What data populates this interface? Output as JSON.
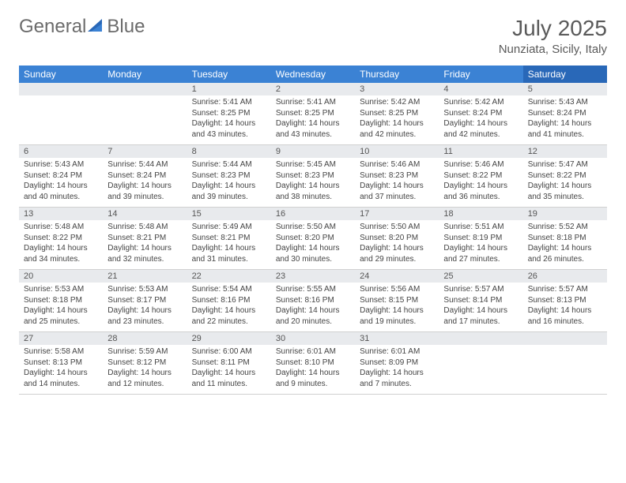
{
  "logo": {
    "text1": "General",
    "text2": "Blue"
  },
  "title": "July 2025",
  "location": "Nunziata, Sicily, Italy",
  "colors": {
    "header_bg": "#3b82d4",
    "header_sat_bg": "#2968b8",
    "header_text": "#ffffff",
    "daynum_bg": "#e8eaed",
    "text": "#444444",
    "title_color": "#5a5a5a"
  },
  "dayNames": [
    "Sunday",
    "Monday",
    "Tuesday",
    "Wednesday",
    "Thursday",
    "Friday",
    "Saturday"
  ],
  "weeks": [
    [
      {
        "n": "",
        "sr": "",
        "ss": "",
        "dl": ""
      },
      {
        "n": "",
        "sr": "",
        "ss": "",
        "dl": ""
      },
      {
        "n": "1",
        "sr": "Sunrise: 5:41 AM",
        "ss": "Sunset: 8:25 PM",
        "dl": "Daylight: 14 hours and 43 minutes."
      },
      {
        "n": "2",
        "sr": "Sunrise: 5:41 AM",
        "ss": "Sunset: 8:25 PM",
        "dl": "Daylight: 14 hours and 43 minutes."
      },
      {
        "n": "3",
        "sr": "Sunrise: 5:42 AM",
        "ss": "Sunset: 8:25 PM",
        "dl": "Daylight: 14 hours and 42 minutes."
      },
      {
        "n": "4",
        "sr": "Sunrise: 5:42 AM",
        "ss": "Sunset: 8:24 PM",
        "dl": "Daylight: 14 hours and 42 minutes."
      },
      {
        "n": "5",
        "sr": "Sunrise: 5:43 AM",
        "ss": "Sunset: 8:24 PM",
        "dl": "Daylight: 14 hours and 41 minutes."
      }
    ],
    [
      {
        "n": "6",
        "sr": "Sunrise: 5:43 AM",
        "ss": "Sunset: 8:24 PM",
        "dl": "Daylight: 14 hours and 40 minutes."
      },
      {
        "n": "7",
        "sr": "Sunrise: 5:44 AM",
        "ss": "Sunset: 8:24 PM",
        "dl": "Daylight: 14 hours and 39 minutes."
      },
      {
        "n": "8",
        "sr": "Sunrise: 5:44 AM",
        "ss": "Sunset: 8:23 PM",
        "dl": "Daylight: 14 hours and 39 minutes."
      },
      {
        "n": "9",
        "sr": "Sunrise: 5:45 AM",
        "ss": "Sunset: 8:23 PM",
        "dl": "Daylight: 14 hours and 38 minutes."
      },
      {
        "n": "10",
        "sr": "Sunrise: 5:46 AM",
        "ss": "Sunset: 8:23 PM",
        "dl": "Daylight: 14 hours and 37 minutes."
      },
      {
        "n": "11",
        "sr": "Sunrise: 5:46 AM",
        "ss": "Sunset: 8:22 PM",
        "dl": "Daylight: 14 hours and 36 minutes."
      },
      {
        "n": "12",
        "sr": "Sunrise: 5:47 AM",
        "ss": "Sunset: 8:22 PM",
        "dl": "Daylight: 14 hours and 35 minutes."
      }
    ],
    [
      {
        "n": "13",
        "sr": "Sunrise: 5:48 AM",
        "ss": "Sunset: 8:22 PM",
        "dl": "Daylight: 14 hours and 34 minutes."
      },
      {
        "n": "14",
        "sr": "Sunrise: 5:48 AM",
        "ss": "Sunset: 8:21 PM",
        "dl": "Daylight: 14 hours and 32 minutes."
      },
      {
        "n": "15",
        "sr": "Sunrise: 5:49 AM",
        "ss": "Sunset: 8:21 PM",
        "dl": "Daylight: 14 hours and 31 minutes."
      },
      {
        "n": "16",
        "sr": "Sunrise: 5:50 AM",
        "ss": "Sunset: 8:20 PM",
        "dl": "Daylight: 14 hours and 30 minutes."
      },
      {
        "n": "17",
        "sr": "Sunrise: 5:50 AM",
        "ss": "Sunset: 8:20 PM",
        "dl": "Daylight: 14 hours and 29 minutes."
      },
      {
        "n": "18",
        "sr": "Sunrise: 5:51 AM",
        "ss": "Sunset: 8:19 PM",
        "dl": "Daylight: 14 hours and 27 minutes."
      },
      {
        "n": "19",
        "sr": "Sunrise: 5:52 AM",
        "ss": "Sunset: 8:18 PM",
        "dl": "Daylight: 14 hours and 26 minutes."
      }
    ],
    [
      {
        "n": "20",
        "sr": "Sunrise: 5:53 AM",
        "ss": "Sunset: 8:18 PM",
        "dl": "Daylight: 14 hours and 25 minutes."
      },
      {
        "n": "21",
        "sr": "Sunrise: 5:53 AM",
        "ss": "Sunset: 8:17 PM",
        "dl": "Daylight: 14 hours and 23 minutes."
      },
      {
        "n": "22",
        "sr": "Sunrise: 5:54 AM",
        "ss": "Sunset: 8:16 PM",
        "dl": "Daylight: 14 hours and 22 minutes."
      },
      {
        "n": "23",
        "sr": "Sunrise: 5:55 AM",
        "ss": "Sunset: 8:16 PM",
        "dl": "Daylight: 14 hours and 20 minutes."
      },
      {
        "n": "24",
        "sr": "Sunrise: 5:56 AM",
        "ss": "Sunset: 8:15 PM",
        "dl": "Daylight: 14 hours and 19 minutes."
      },
      {
        "n": "25",
        "sr": "Sunrise: 5:57 AM",
        "ss": "Sunset: 8:14 PM",
        "dl": "Daylight: 14 hours and 17 minutes."
      },
      {
        "n": "26",
        "sr": "Sunrise: 5:57 AM",
        "ss": "Sunset: 8:13 PM",
        "dl": "Daylight: 14 hours and 16 minutes."
      }
    ],
    [
      {
        "n": "27",
        "sr": "Sunrise: 5:58 AM",
        "ss": "Sunset: 8:13 PM",
        "dl": "Daylight: 14 hours and 14 minutes."
      },
      {
        "n": "28",
        "sr": "Sunrise: 5:59 AM",
        "ss": "Sunset: 8:12 PM",
        "dl": "Daylight: 14 hours and 12 minutes."
      },
      {
        "n": "29",
        "sr": "Sunrise: 6:00 AM",
        "ss": "Sunset: 8:11 PM",
        "dl": "Daylight: 14 hours and 11 minutes."
      },
      {
        "n": "30",
        "sr": "Sunrise: 6:01 AM",
        "ss": "Sunset: 8:10 PM",
        "dl": "Daylight: 14 hours and 9 minutes."
      },
      {
        "n": "31",
        "sr": "Sunrise: 6:01 AM",
        "ss": "Sunset: 8:09 PM",
        "dl": "Daylight: 14 hours and 7 minutes."
      },
      {
        "n": "",
        "sr": "",
        "ss": "",
        "dl": ""
      },
      {
        "n": "",
        "sr": "",
        "ss": "",
        "dl": ""
      }
    ]
  ]
}
